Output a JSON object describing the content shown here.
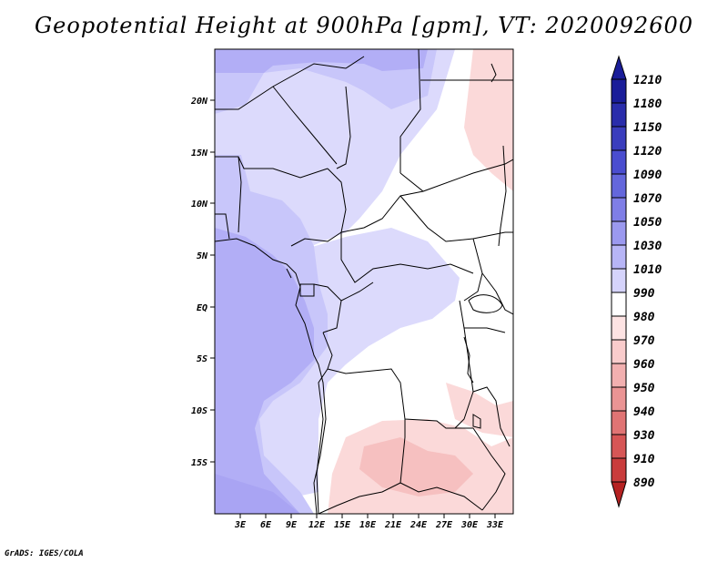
{
  "title": "Geopotential Height at 900hPa [gpm], VT: 2020092600",
  "credit": "GrADS: IGES/COLA",
  "lat_labels": [
    "20N",
    "15N",
    "10N",
    "5N",
    "EQ",
    "5S",
    "10S",
    "15S"
  ],
  "lon_labels": [
    "3E",
    "6E",
    "9E",
    "12E",
    "15E",
    "18E",
    "21E",
    "24E",
    "27E",
    "30E",
    "33E"
  ],
  "colorbar": {
    "levels": [
      "1210",
      "1180",
      "1150",
      "1120",
      "1090",
      "1070",
      "1050",
      "1030",
      "1010",
      "990",
      "980",
      "970",
      "960",
      "950",
      "940",
      "930",
      "910",
      "890"
    ],
    "colors": [
      "#1a1d99",
      "#2a2dab",
      "#3a3dbd",
      "#4a4dcf",
      "#6467dc",
      "#7f7ee6",
      "#9b99ef",
      "#b7b5f6",
      "#d5d3fb",
      "#ffffff",
      "#fde3e3",
      "#f9cccc",
      "#f2b0b0",
      "#ea9494",
      "#e07474",
      "#d65656",
      "#c93c3c",
      "#b52222"
    ]
  },
  "palette": {
    "frame": "#000000",
    "deep_blue": "#b2aef6",
    "mid_blue": "#c8c6fa",
    "light_blue": "#dcdafc",
    "pink": "#fbd9d9",
    "deep_pink": "#f6c0c0"
  }
}
